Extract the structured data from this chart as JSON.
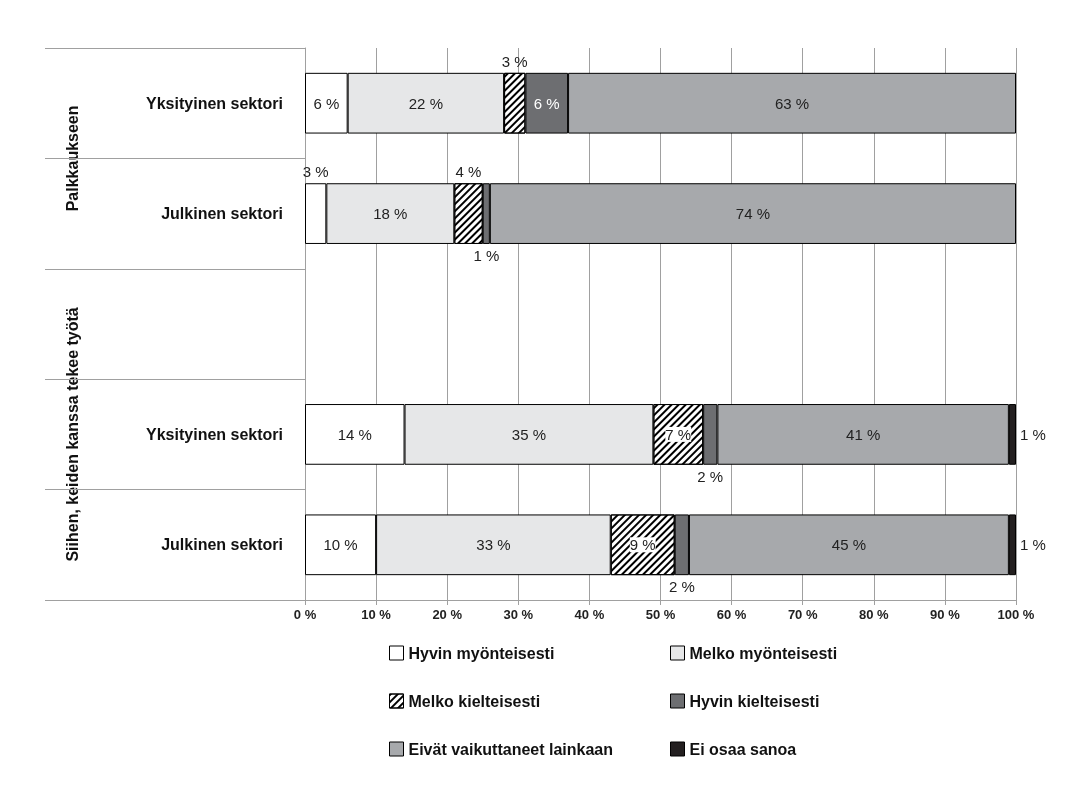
{
  "chart_data": {
    "type": "bar",
    "orientation": "horizontal",
    "stacked": true,
    "categories": [
      "Yksityinen sektori",
      "Julkinen sektori",
      null,
      "Yksityinen sektori",
      "Julkinen sektori"
    ],
    "series": [
      {
        "name": "Hyvin myönteisesti",
        "color": "#ffffff",
        "values": [
          6,
          3,
          null,
          14,
          10
        ],
        "value_labels": [
          "6 %",
          "3 %",
          null,
          "14 %",
          "10 %"
        ]
      },
      {
        "name": "Melko myönteisesti",
        "color": "#e6e7e8",
        "values": [
          22,
          18,
          null,
          35,
          33
        ],
        "value_labels": [
          "22 %",
          "18 %",
          null,
          "35 %",
          "33 %"
        ]
      },
      {
        "name": "Melko kielteisesti",
        "color": "#ffffff",
        "values": [
          3,
          4,
          null,
          7,
          9
        ],
        "value_labels": [
          "3 %",
          "4 %",
          null,
          "7 %",
          "9 %"
        ]
      },
      {
        "name": "Hyvin kielteisesti",
        "color": "#6d6e71",
        "values": [
          6,
          1,
          null,
          2,
          2
        ],
        "value_labels": [
          "6 %",
          "1 %",
          null,
          "2 %",
          "2 %"
        ]
      },
      {
        "name": "Eivät vaikuttaneet lainkaan",
        "color": "#a7a9ac",
        "values": [
          63,
          74,
          null,
          41,
          45
        ],
        "value_labels": [
          "63 %",
          "74 %",
          null,
          "41 %",
          "45 %"
        ]
      },
      {
        "name": "Ei osaa sanoa",
        "color": "#231f20",
        "values": [
          null,
          null,
          null,
          1,
          1
        ],
        "value_labels": [
          null,
          null,
          null,
          "1 %",
          "1 %"
        ]
      }
    ],
    "xlim": [
      0,
      100
    ],
    "xticks": [
      {
        "value": 0,
        "label": "0 %"
      },
      {
        "value": 10,
        "label": "10 %"
      },
      {
        "value": 20,
        "label": "20 %"
      },
      {
        "value": 30,
        "label": "30 %"
      },
      {
        "value": 40,
        "label": "40 %"
      },
      {
        "value": 50,
        "label": "50 %"
      },
      {
        "value": 60,
        "label": "60 %"
      },
      {
        "value": 70,
        "label": "70 %"
      },
      {
        "value": 80,
        "label": "80 %"
      },
      {
        "value": 90,
        "label": "90 %"
      },
      {
        "value": 100,
        "label": "100 %"
      }
    ],
    "grid": "x",
    "legend": "bottom",
    "annotations": [
      "Palkkaukseen",
      "Siihen, keiden kanssa tekee työtä"
    ]
  }
}
